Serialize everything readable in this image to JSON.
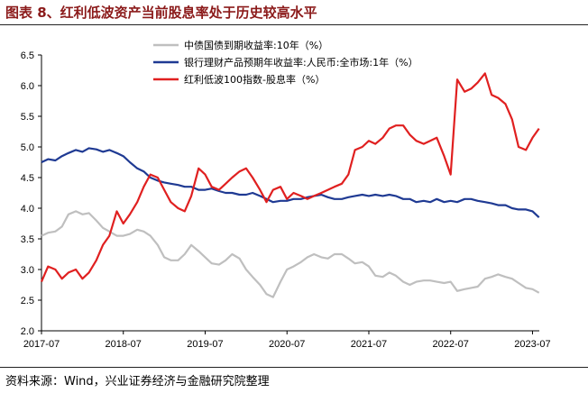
{
  "title": "图表 8、红利低波资产当前股息率处于历史较高水平",
  "source": "资料来源：Wind，兴业证券经济与金融研究院整理",
  "chart_data": {
    "type": "line",
    "xlabel": "",
    "ylabel": "",
    "ylim": [
      2.0,
      6.5
    ],
    "yticks": [
      "2.0",
      "2.5",
      "3.0",
      "3.5",
      "4.0",
      "4.5",
      "5.0",
      "5.5",
      "6.0",
      "6.5"
    ],
    "xlim": [
      2017.5,
      2023.583
    ],
    "xticks": [
      {
        "value": 2017.5,
        "label": "2017-07"
      },
      {
        "value": 2018.5,
        "label": "2018-07"
      },
      {
        "value": 2019.5,
        "label": "2019-07"
      },
      {
        "value": 2020.5,
        "label": "2020-07"
      },
      {
        "value": 2021.5,
        "label": "2021-07"
      },
      {
        "value": 2022.5,
        "label": "2022-07"
      },
      {
        "value": 2023.5,
        "label": "2023-07"
      }
    ],
    "legend_position": "top-center",
    "series": [
      {
        "name": "中债国债到期收益率:10年（%）",
        "color": "#bfbfbf",
        "points": [
          [
            2017.5,
            3.55
          ],
          [
            2017.58,
            3.6
          ],
          [
            2017.67,
            3.62
          ],
          [
            2017.75,
            3.7
          ],
          [
            2017.83,
            3.9
          ],
          [
            2017.92,
            3.95
          ],
          [
            2018.0,
            3.9
          ],
          [
            2018.08,
            3.92
          ],
          [
            2018.17,
            3.8
          ],
          [
            2018.25,
            3.68
          ],
          [
            2018.33,
            3.62
          ],
          [
            2018.42,
            3.55
          ],
          [
            2018.5,
            3.55
          ],
          [
            2018.58,
            3.58
          ],
          [
            2018.67,
            3.65
          ],
          [
            2018.75,
            3.62
          ],
          [
            2018.83,
            3.55
          ],
          [
            2018.92,
            3.4
          ],
          [
            2019.0,
            3.2
          ],
          [
            2019.08,
            3.15
          ],
          [
            2019.17,
            3.15
          ],
          [
            2019.25,
            3.25
          ],
          [
            2019.33,
            3.4
          ],
          [
            2019.42,
            3.3
          ],
          [
            2019.5,
            3.2
          ],
          [
            2019.58,
            3.1
          ],
          [
            2019.67,
            3.08
          ],
          [
            2019.75,
            3.15
          ],
          [
            2019.83,
            3.25
          ],
          [
            2019.92,
            3.18
          ],
          [
            2020.0,
            3.0
          ],
          [
            2020.08,
            2.88
          ],
          [
            2020.17,
            2.75
          ],
          [
            2020.25,
            2.6
          ],
          [
            2020.33,
            2.55
          ],
          [
            2020.42,
            2.8
          ],
          [
            2020.5,
            3.0
          ],
          [
            2020.58,
            3.05
          ],
          [
            2020.67,
            3.12
          ],
          [
            2020.75,
            3.2
          ],
          [
            2020.83,
            3.25
          ],
          [
            2020.92,
            3.2
          ],
          [
            2021.0,
            3.18
          ],
          [
            2021.08,
            3.25
          ],
          [
            2021.17,
            3.25
          ],
          [
            2021.25,
            3.18
          ],
          [
            2021.33,
            3.1
          ],
          [
            2021.42,
            3.12
          ],
          [
            2021.5,
            3.05
          ],
          [
            2021.58,
            2.9
          ],
          [
            2021.67,
            2.88
          ],
          [
            2021.75,
            2.95
          ],
          [
            2021.83,
            2.9
          ],
          [
            2021.92,
            2.8
          ],
          [
            2022.0,
            2.75
          ],
          [
            2022.08,
            2.8
          ],
          [
            2022.17,
            2.82
          ],
          [
            2022.25,
            2.82
          ],
          [
            2022.33,
            2.8
          ],
          [
            2022.42,
            2.78
          ],
          [
            2022.5,
            2.8
          ],
          [
            2022.58,
            2.65
          ],
          [
            2022.67,
            2.68
          ],
          [
            2022.75,
            2.7
          ],
          [
            2022.83,
            2.72
          ],
          [
            2022.92,
            2.85
          ],
          [
            2023.0,
            2.88
          ],
          [
            2023.08,
            2.92
          ],
          [
            2023.17,
            2.88
          ],
          [
            2023.25,
            2.85
          ],
          [
            2023.33,
            2.78
          ],
          [
            2023.42,
            2.7
          ],
          [
            2023.5,
            2.68
          ],
          [
            2023.58,
            2.62
          ]
        ]
      },
      {
        "name": "银行理财产品预期年收益率:人民币:全市场:1年（%）",
        "color": "#1f3a93",
        "points": [
          [
            2017.5,
            4.75
          ],
          [
            2017.58,
            4.8
          ],
          [
            2017.67,
            4.78
          ],
          [
            2017.75,
            4.85
          ],
          [
            2017.83,
            4.9
          ],
          [
            2017.92,
            4.95
          ],
          [
            2018.0,
            4.92
          ],
          [
            2018.08,
            4.98
          ],
          [
            2018.17,
            4.96
          ],
          [
            2018.25,
            4.92
          ],
          [
            2018.33,
            4.95
          ],
          [
            2018.42,
            4.9
          ],
          [
            2018.5,
            4.85
          ],
          [
            2018.58,
            4.75
          ],
          [
            2018.67,
            4.65
          ],
          [
            2018.75,
            4.6
          ],
          [
            2018.83,
            4.5
          ],
          [
            2018.92,
            4.45
          ],
          [
            2019.0,
            4.42
          ],
          [
            2019.08,
            4.4
          ],
          [
            2019.17,
            4.38
          ],
          [
            2019.25,
            4.35
          ],
          [
            2019.33,
            4.35
          ],
          [
            2019.42,
            4.3
          ],
          [
            2019.5,
            4.3
          ],
          [
            2019.58,
            4.32
          ],
          [
            2019.67,
            4.28
          ],
          [
            2019.75,
            4.25
          ],
          [
            2019.83,
            4.25
          ],
          [
            2019.92,
            4.22
          ],
          [
            2020.0,
            4.22
          ],
          [
            2020.08,
            4.25
          ],
          [
            2020.17,
            4.2
          ],
          [
            2020.25,
            4.15
          ],
          [
            2020.33,
            4.1
          ],
          [
            2020.42,
            4.12
          ],
          [
            2020.5,
            4.12
          ],
          [
            2020.58,
            4.15
          ],
          [
            2020.67,
            4.15
          ],
          [
            2020.75,
            4.18
          ],
          [
            2020.83,
            4.2
          ],
          [
            2020.92,
            4.22
          ],
          [
            2021.0,
            4.18
          ],
          [
            2021.08,
            4.15
          ],
          [
            2021.17,
            4.15
          ],
          [
            2021.25,
            4.18
          ],
          [
            2021.33,
            4.2
          ],
          [
            2021.42,
            4.22
          ],
          [
            2021.5,
            4.2
          ],
          [
            2021.58,
            4.22
          ],
          [
            2021.67,
            4.2
          ],
          [
            2021.75,
            4.22
          ],
          [
            2021.83,
            4.2
          ],
          [
            2021.92,
            4.15
          ],
          [
            2022.0,
            4.15
          ],
          [
            2022.08,
            4.1
          ],
          [
            2022.17,
            4.12
          ],
          [
            2022.25,
            4.1
          ],
          [
            2022.33,
            4.15
          ],
          [
            2022.42,
            4.1
          ],
          [
            2022.5,
            4.12
          ],
          [
            2022.58,
            4.1
          ],
          [
            2022.67,
            4.15
          ],
          [
            2022.75,
            4.15
          ],
          [
            2022.83,
            4.12
          ],
          [
            2022.92,
            4.1
          ],
          [
            2023.0,
            4.08
          ],
          [
            2023.08,
            4.05
          ],
          [
            2023.17,
            4.05
          ],
          [
            2023.25,
            4.0
          ],
          [
            2023.33,
            3.98
          ],
          [
            2023.42,
            3.98
          ],
          [
            2023.5,
            3.95
          ],
          [
            2023.58,
            3.85
          ]
        ]
      },
      {
        "name": "红利低波100指数-股息率（%）",
        "color": "#e02020",
        "points": [
          [
            2017.5,
            2.8
          ],
          [
            2017.58,
            3.05
          ],
          [
            2017.67,
            3.0
          ],
          [
            2017.75,
            2.85
          ],
          [
            2017.83,
            2.95
          ],
          [
            2017.92,
            3.0
          ],
          [
            2018.0,
            2.85
          ],
          [
            2018.08,
            2.95
          ],
          [
            2018.17,
            3.15
          ],
          [
            2018.25,
            3.4
          ],
          [
            2018.33,
            3.55
          ],
          [
            2018.42,
            3.95
          ],
          [
            2018.5,
            3.75
          ],
          [
            2018.58,
            3.9
          ],
          [
            2018.67,
            4.1
          ],
          [
            2018.75,
            4.35
          ],
          [
            2018.83,
            4.55
          ],
          [
            2018.92,
            4.5
          ],
          [
            2019.0,
            4.3
          ],
          [
            2019.08,
            4.1
          ],
          [
            2019.17,
            4.0
          ],
          [
            2019.25,
            3.95
          ],
          [
            2019.33,
            4.2
          ],
          [
            2019.42,
            4.65
          ],
          [
            2019.5,
            4.55
          ],
          [
            2019.58,
            4.35
          ],
          [
            2019.67,
            4.3
          ],
          [
            2019.75,
            4.4
          ],
          [
            2019.83,
            4.5
          ],
          [
            2019.92,
            4.6
          ],
          [
            2020.0,
            4.65
          ],
          [
            2020.08,
            4.5
          ],
          [
            2020.17,
            4.3
          ],
          [
            2020.25,
            4.1
          ],
          [
            2020.33,
            4.3
          ],
          [
            2020.42,
            4.35
          ],
          [
            2020.5,
            4.15
          ],
          [
            2020.58,
            4.25
          ],
          [
            2020.67,
            4.2
          ],
          [
            2020.75,
            4.15
          ],
          [
            2020.83,
            4.2
          ],
          [
            2020.92,
            4.25
          ],
          [
            2021.0,
            4.3
          ],
          [
            2021.08,
            4.35
          ],
          [
            2021.17,
            4.4
          ],
          [
            2021.25,
            4.55
          ],
          [
            2021.33,
            4.95
          ],
          [
            2021.42,
            5.0
          ],
          [
            2021.5,
            5.1
          ],
          [
            2021.58,
            5.05
          ],
          [
            2021.67,
            5.15
          ],
          [
            2021.75,
            5.3
          ],
          [
            2021.83,
            5.35
          ],
          [
            2021.92,
            5.35
          ],
          [
            2022.0,
            5.2
          ],
          [
            2022.08,
            5.1
          ],
          [
            2022.17,
            5.05
          ],
          [
            2022.25,
            5.1
          ],
          [
            2022.33,
            5.15
          ],
          [
            2022.42,
            4.85
          ],
          [
            2022.5,
            4.55
          ],
          [
            2022.58,
            6.1
          ],
          [
            2022.67,
            5.9
          ],
          [
            2022.75,
            5.95
          ],
          [
            2022.83,
            6.05
          ],
          [
            2022.92,
            6.2
          ],
          [
            2023.0,
            5.85
          ],
          [
            2023.08,
            5.8
          ],
          [
            2023.17,
            5.7
          ],
          [
            2023.25,
            5.45
          ],
          [
            2023.33,
            5.0
          ],
          [
            2023.42,
            4.95
          ],
          [
            2023.5,
            5.15
          ],
          [
            2023.58,
            5.3
          ]
        ]
      }
    ]
  }
}
